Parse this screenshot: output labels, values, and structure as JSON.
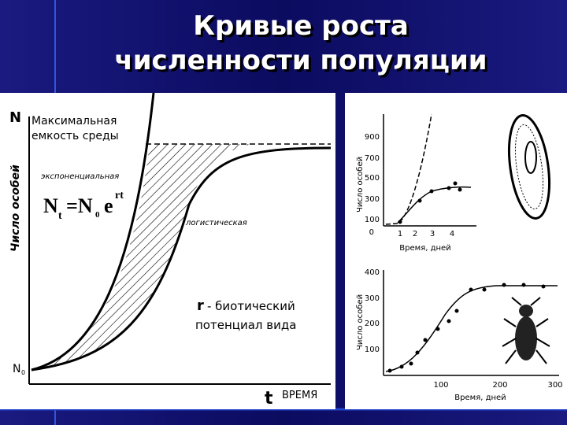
{
  "title": {
    "lines": [
      "Кривые роста",
      "численности популяции"
    ]
  },
  "left_figure": {
    "y_axis_symbol": "N",
    "capacity_label": [
      "Максимальная",
      "емкость среды"
    ],
    "y_axis_label": "Число особей",
    "exponential_label": "экспоненциальная",
    "formula": {
      "n": "N",
      "n_sub": "t",
      "eq": "=N",
      "eq_sub": "0",
      "e": "e",
      "exp": "rt"
    },
    "logistic_label": "логистическая",
    "r_note": {
      "symbol": "r",
      "line1": "- биотический",
      "line2": "потенциал вида"
    },
    "n0": {
      "symbol": "N",
      "sub": "0"
    },
    "x_axis_symbol": "t",
    "x_axis_label": "ВРЕМЯ"
  },
  "right_top_figure": {
    "y_axis_label": "Число особей",
    "y_ticks": [
      "900",
      "700",
      "500",
      "300",
      "100",
      "0"
    ],
    "x_ticks": [
      "1",
      "2",
      "3",
      "4"
    ],
    "x_axis_label": "Время, дней"
  },
  "right_bottom_figure": {
    "y_axis_label": "Число особей",
    "y_ticks": [
      "400",
      "300",
      "200",
      "100"
    ],
    "x_ticks": [
      "100",
      "200",
      "300"
    ],
    "x_axis_label": "Время, дней"
  }
}
